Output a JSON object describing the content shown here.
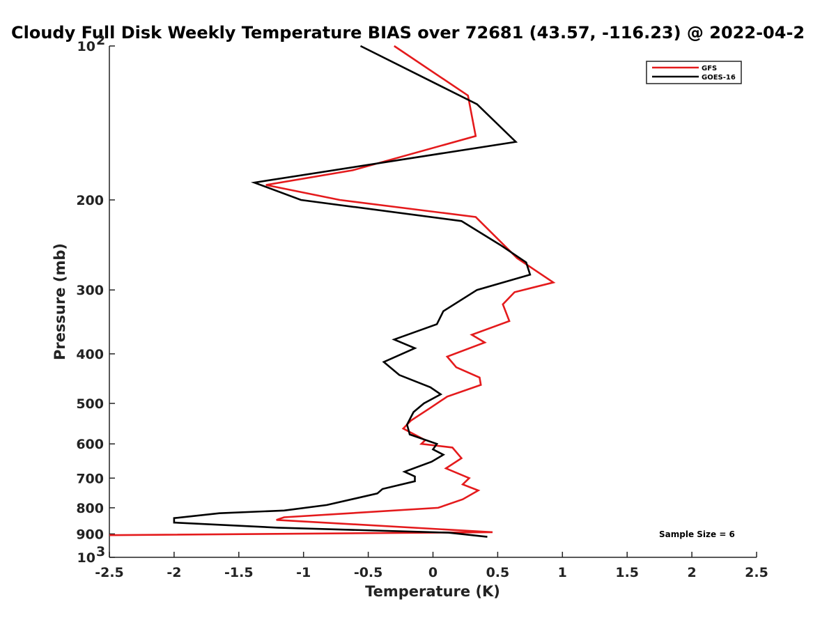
{
  "chart_data": {
    "type": "line",
    "title": "Cloudy Full Disk Weekly Temperature BIAS over 72681 (43.57, -116.23) @ 2022-04-2",
    "xlabel": "Temperature (K)",
    "ylabel": "Pressure (mb)",
    "xlim": [
      -2.5,
      2.5
    ],
    "ylim": [
      100,
      1000
    ],
    "yscale": "log",
    "y_reversed": true,
    "grid": false,
    "legend_position": "top-right",
    "x_ticks": [
      "-2.5",
      "-2",
      "-1.5",
      "-1",
      "-0.5",
      "0",
      "0.5",
      "1",
      "1.5",
      "2",
      "2.5"
    ],
    "y_ticks": [
      {
        "value": 100,
        "base": "10",
        "exp": "2"
      },
      {
        "value": 200,
        "label": "200"
      },
      {
        "value": 300,
        "label": "300"
      },
      {
        "value": 400,
        "label": "400"
      },
      {
        "value": 500,
        "label": "500"
      },
      {
        "value": 600,
        "label": "600"
      },
      {
        "value": 700,
        "label": "700"
      },
      {
        "value": 800,
        "label": "800"
      },
      {
        "value": 900,
        "label": "900"
      },
      {
        "value": 1000,
        "base": "10",
        "exp": "3"
      }
    ],
    "annotation": "Sample Size = 6",
    "series": [
      {
        "name": "GFS",
        "color": "#e41a1c",
        "points": [
          [
            -0.3,
            100
          ],
          [
            0.27,
            125
          ],
          [
            0.33,
            150
          ],
          [
            -0.62,
            175
          ],
          [
            -1.29,
            187
          ],
          [
            -0.72,
            200
          ],
          [
            0.33,
            216
          ],
          [
            0.65,
            260
          ],
          [
            0.93,
            290
          ],
          [
            0.63,
            303
          ],
          [
            0.54,
            320
          ],
          [
            0.59,
            345
          ],
          [
            0.3,
            367
          ],
          [
            0.4,
            380
          ],
          [
            0.11,
            405
          ],
          [
            0.18,
            425
          ],
          [
            0.36,
            445
          ],
          [
            0.37,
            460
          ],
          [
            0.11,
            485
          ],
          [
            -0.02,
            510
          ],
          [
            -0.17,
            540
          ],
          [
            -0.23,
            560
          ],
          [
            -0.06,
            590
          ],
          [
            -0.09,
            600
          ],
          [
            0.15,
            610
          ],
          [
            0.22,
            640
          ],
          [
            0.1,
            670
          ],
          [
            0.28,
            700
          ],
          [
            0.23,
            720
          ],
          [
            0.35,
            740
          ],
          [
            0.23,
            770
          ],
          [
            0.04,
            800
          ],
          [
            -1.15,
            835
          ],
          [
            -1.21,
            845
          ],
          [
            0.46,
            893
          ],
          [
            -2.5,
            905
          ]
        ]
      },
      {
        "name": "GOES-16",
        "color": "#000000",
        "points": [
          [
            -0.56,
            100
          ],
          [
            0.34,
            130
          ],
          [
            0.64,
            154
          ],
          [
            -1.38,
            185
          ],
          [
            -1.02,
            200
          ],
          [
            0.22,
            220
          ],
          [
            0.52,
            245
          ],
          [
            0.72,
            265
          ],
          [
            0.75,
            280
          ],
          [
            0.34,
            300
          ],
          [
            0.08,
            330
          ],
          [
            0.03,
            350
          ],
          [
            -0.3,
            375
          ],
          [
            -0.14,
            390
          ],
          [
            -0.38,
            415
          ],
          [
            -0.26,
            440
          ],
          [
            -0.02,
            465
          ],
          [
            0.06,
            480
          ],
          [
            -0.07,
            500
          ],
          [
            -0.15,
            520
          ],
          [
            -0.2,
            550
          ],
          [
            -0.18,
            575
          ],
          [
            0.03,
            600
          ],
          [
            0.0,
            615
          ],
          [
            0.08,
            630
          ],
          [
            -0.01,
            650
          ],
          [
            -0.22,
            680
          ],
          [
            -0.14,
            695
          ],
          [
            -0.14,
            710
          ],
          [
            -0.39,
            735
          ],
          [
            -0.43,
            750
          ],
          [
            -0.82,
            790
          ],
          [
            -1.15,
            810
          ],
          [
            -1.65,
            820
          ],
          [
            -2.0,
            838
          ],
          [
            -2.0,
            855
          ],
          [
            -1.2,
            875
          ],
          [
            0.12,
            895
          ],
          [
            0.42,
            912
          ]
        ]
      }
    ]
  }
}
